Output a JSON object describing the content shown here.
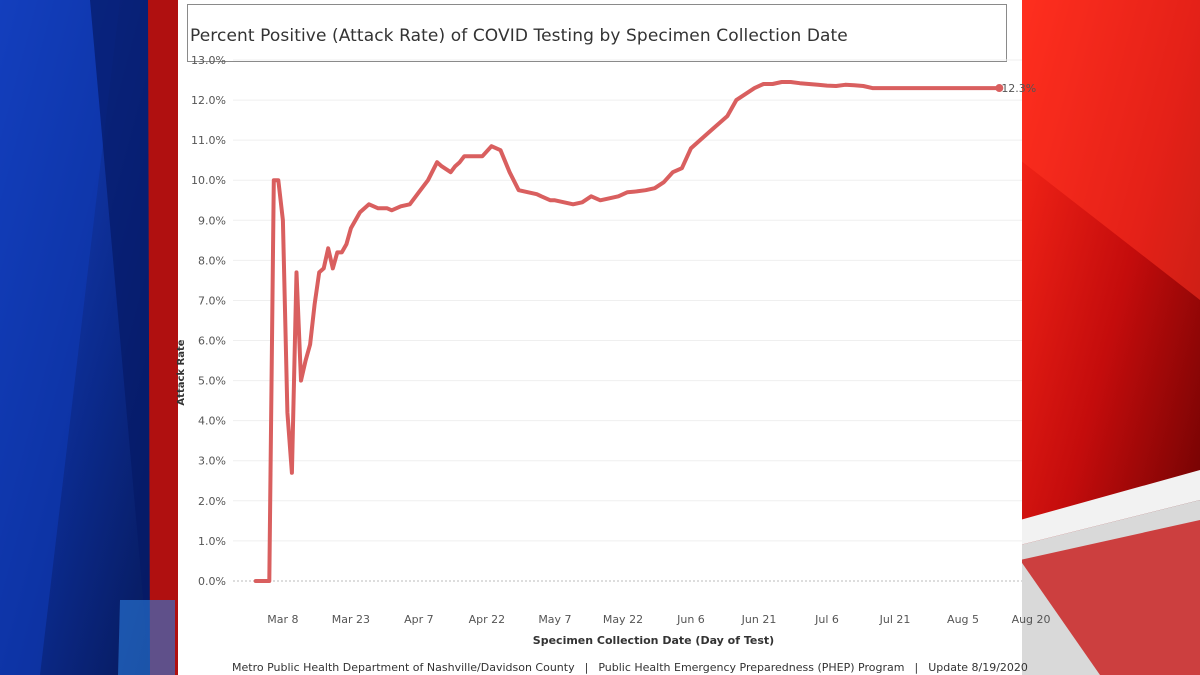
{
  "colors": {
    "line": "#d95f5f",
    "background_blue": "#0d2a8a",
    "background_red": "#c01010",
    "gridline": "#efefef",
    "zero_line": "#bbbbbb",
    "text": "#333333"
  },
  "footer": {
    "org": "Metro Public Health Department of Nashville/Davidson County",
    "separator": "|",
    "program": "Public Health Emergency Preparedness (PHEP) Program",
    "update": "Update 8/19/2020"
  },
  "chart_data": {
    "type": "line",
    "title": "Percent Positive (Attack Rate) of COVID Testing by Specimen Collection Date",
    "xlabel": "Specimen Collection Date (Day of Test)",
    "ylabel": "Attack Rate",
    "ylim": [
      -0.6,
      13.0
    ],
    "xlim": [
      -11,
      163
    ],
    "yticks": [
      0.0,
      1.0,
      2.0,
      3.0,
      4.0,
      5.0,
      6.0,
      7.0,
      8.0,
      9.0,
      10.0,
      11.0,
      12.0,
      13.0
    ],
    "ytick_labels": [
      "0.0%",
      "1.0%",
      "2.0%",
      "3.0%",
      "4.0%",
      "5.0%",
      "6.0%",
      "7.0%",
      "8.0%",
      "9.0%",
      "10.0%",
      "11.0%",
      "12.0%",
      "13.0%"
    ],
    "xticks": [
      0,
      15,
      30,
      45,
      60,
      75,
      90,
      105,
      120,
      135,
      150,
      165
    ],
    "xtick_labels": [
      "Mar 8",
      "Mar 23",
      "Apr 7",
      "Apr 22",
      "May 7",
      "May 22",
      "Jun 6",
      "Jun 21",
      "Jul 6",
      "Jul 21",
      "Aug 5",
      "Aug 20"
    ],
    "grid": true,
    "end_label": "12.3%",
    "series": [
      {
        "name": "Attack Rate",
        "x": [
          -6,
          -3,
          -2,
          -1,
          0,
          1,
          2,
          3,
          4,
          5,
          6,
          7,
          8,
          9,
          10,
          11,
          12,
          13,
          14,
          15,
          17,
          19,
          21,
          23,
          24,
          26,
          28,
          30,
          32,
          34,
          35,
          37,
          38,
          39,
          40,
          42,
          44,
          46,
          48,
          50,
          52,
          54,
          56,
          57,
          59,
          60,
          62,
          64,
          66,
          68,
          70,
          72,
          74,
          76,
          78,
          80,
          82,
          84,
          86,
          88,
          90,
          92,
          94,
          96,
          98,
          100,
          102,
          104,
          106,
          108,
          110,
          112,
          114,
          116,
          118,
          120,
          122,
          124,
          126,
          128,
          130,
          132,
          134,
          136,
          138,
          140,
          142,
          144,
          146,
          148,
          150,
          152,
          154,
          156,
          158
        ],
        "y": [
          0.0,
          0.0,
          10.0,
          10.0,
          9.0,
          4.2,
          2.7,
          7.7,
          5.0,
          5.5,
          5.9,
          6.9,
          7.7,
          7.8,
          8.3,
          7.8,
          8.2,
          8.2,
          8.4,
          8.8,
          9.2,
          9.4,
          9.3,
          9.3,
          9.25,
          9.35,
          9.4,
          9.7,
          10.0,
          10.45,
          10.35,
          10.2,
          10.35,
          10.45,
          10.6,
          10.6,
          10.6,
          10.85,
          10.75,
          10.2,
          9.75,
          9.7,
          9.65,
          9.6,
          9.5,
          9.5,
          9.45,
          9.4,
          9.45,
          9.6,
          9.5,
          9.55,
          9.6,
          9.7,
          9.72,
          9.75,
          9.8,
          9.95,
          10.2,
          10.3,
          10.8,
          11.0,
          11.2,
          11.4,
          11.6,
          12.0,
          12.15,
          12.3,
          12.4,
          12.4,
          12.45,
          12.45,
          12.42,
          12.4,
          12.38,
          12.36,
          12.35,
          12.38,
          12.37,
          12.35,
          12.3,
          12.3,
          12.3,
          12.3,
          12.3,
          12.3,
          12.3,
          12.3,
          12.3,
          12.3,
          12.3,
          12.3,
          12.3,
          12.3,
          12.3
        ]
      }
    ]
  }
}
